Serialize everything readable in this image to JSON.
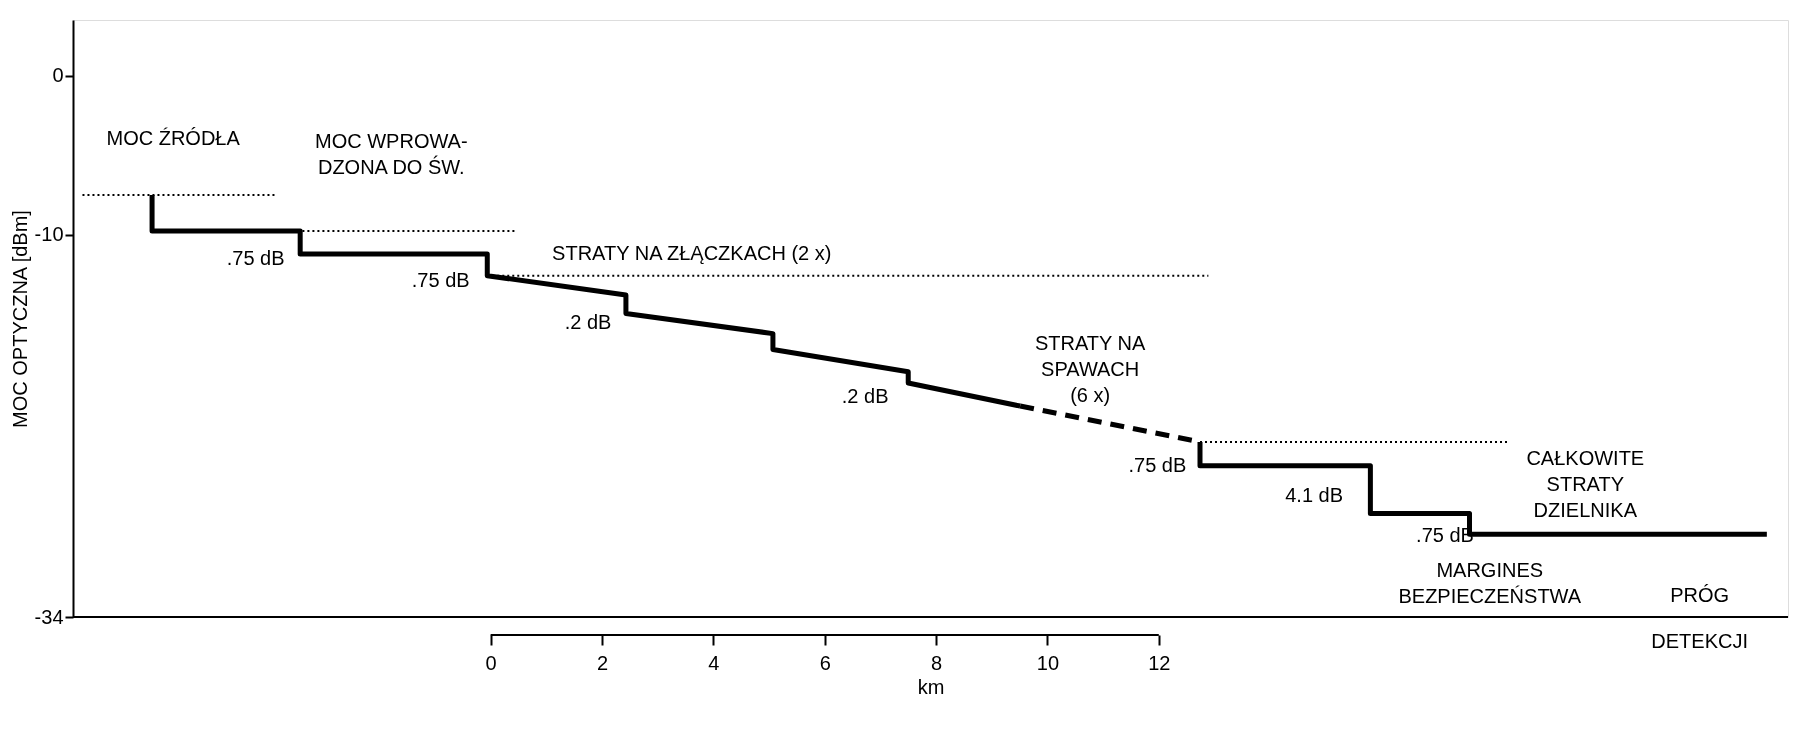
{
  "chart_data": {
    "type": "line",
    "xlabel": "km",
    "ylabel": "MOC OPTYCZNA [dBm]",
    "xlim": [
      -7.5,
      23.3
    ],
    "ylim": [
      -34,
      3.5
    ],
    "xticks": [
      0,
      2,
      4,
      6,
      8,
      10,
      12
    ],
    "yticks": [
      -34,
      -10,
      0
    ],
    "marker": "none",
    "series": [
      {
        "line_style": "solid",
        "color": "#000000",
        "x": [
          -6.08,
          -6.08,
          -3.42,
          -3.42,
          -0.06,
          -0.06,
          2.43,
          2.43,
          5.07,
          5.07,
          7.5,
          7.5,
          9.51
        ],
        "values": [
          -7.5,
          -9.75,
          -9.75,
          -11.2,
          -11.2,
          -12.56,
          -13.78,
          -14.93,
          -16.2,
          -17.2,
          -18.6,
          -19.3,
          -20.75
        ]
      },
      {
        "type": "line",
        "line_style": "dashed",
        "color": "#000000",
        "x": [
          9.51,
          12.74
        ],
        "values": [
          -20.75,
          -23.0
        ]
      },
      {
        "type": "line",
        "line_style": "solid",
        "color": "#000000",
        "x": [
          12.74,
          12.74,
          15.8,
          15.8,
          17.58,
          17.58,
          22.92
        ],
        "values": [
          -23.0,
          -24.5,
          -24.5,
          -27.5,
          -27.5,
          -28.8,
          -28.8
        ]
      },
      {
        "type": "line",
        "line_style": "dotted",
        "color": "#000000",
        "x": [
          -7.33,
          -3.87
        ],
        "values": [
          -7.5,
          -7.5
        ]
      },
      {
        "type": "line",
        "line_style": "dotted",
        "color": "#000000",
        "x": [
          -3.38,
          0.46
        ],
        "values": [
          -9.75,
          -9.75
        ]
      },
      {
        "type": "line",
        "line_style": "dotted",
        "color": "#000000",
        "x": [
          -0.06,
          12.89
        ],
        "values": [
          -12.56,
          -12.56
        ]
      },
      {
        "type": "line",
        "line_style": "dotted",
        "color": "#000000",
        "x": [
          12.74,
          18.28
        ],
        "values": [
          -23.0,
          -23.0
        ]
      }
    ],
    "annotations": [
      "MOC ŹRÓDŁA",
      "MOC WPROWA-\nDZONA DO ŚW.",
      ".75 dB",
      ".75 dB",
      "STRATY NA ZŁĄCZKACH (2 x)",
      ".2 dB",
      ".2 dB",
      "STRATY NA\nSPAWACH\n(6 x)",
      ".75 dB",
      "4.1 dB",
      "CAŁKOWITE\nSTRATY\nDZIELNIKA",
      ".75 dB",
      "MARGINES\nBEZPIECZEŃSTWA",
      "PRÓG\nDETEKCJI"
    ]
  }
}
